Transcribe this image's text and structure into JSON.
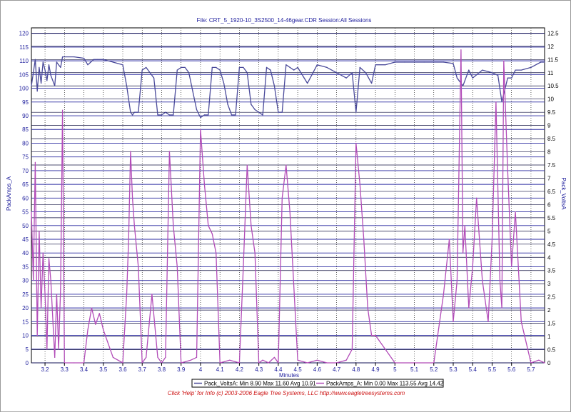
{
  "window": {
    "title": "File: CRT_5_1920-10_3S2500_14-46gear.CDR   Session:All Sessions"
  },
  "footer": {
    "text": "Click 'Help' for Info  (c) 2003-2006 Eagle Tree Systems, LLC   http://www.eagletreesystems.com"
  },
  "legend": {
    "volts_label": "Pack_VoltsA:  Min 8.90 Max 11.60 Avg 10.91",
    "amps_label": "PackAmps_A:  Min 0.00 Max 113.55 Avg 14.42"
  },
  "colors": {
    "volts": "#4a4a9a",
    "amps": "#b24cb8",
    "grid": "#2a2aa0",
    "grid_minor": "#000000",
    "label": "#1c1c9c"
  },
  "chart_data": {
    "type": "line",
    "title": "File: CRT_5_1920-10_3S2500_14-46gear.CDR   Session:All Sessions",
    "xlabel": "Minutes",
    "ylabel_left": "PackAmps_A",
    "ylabel_right": "Pack_VoltsA",
    "xlim": [
      3.13,
      5.77
    ],
    "ylim_left": [
      0,
      122
    ],
    "ylim_right": [
      0,
      12.7
    ],
    "x_ticks": [
      "3.2",
      "3.3",
      "3.4",
      "3.5",
      "3.6",
      "3.7",
      "3.8",
      "3.9",
      "4",
      "4.1",
      "4.2",
      "4.3",
      "4.4",
      "4.5",
      "4.6",
      "4.7",
      "4.8",
      "4.9",
      "5",
      "5.1",
      "5.2",
      "5.3",
      "5.4",
      "5.5",
      "5.6",
      "5.7"
    ],
    "y_left_ticks": [
      "0",
      "5",
      "10",
      "15",
      "20",
      "25",
      "30",
      "35",
      "40",
      "45",
      "50",
      "55",
      "60",
      "65",
      "70",
      "75",
      "80",
      "85",
      "90",
      "95",
      "100",
      "105",
      "110",
      "115",
      "120"
    ],
    "y_right_ticks": [
      "0",
      "0.5",
      "1",
      "1.5",
      "2",
      "2.5",
      "3",
      "3.5",
      "4",
      "4.5",
      "5",
      "5.5",
      "6",
      "6.5",
      "7",
      "7.5",
      "8",
      "8.5",
      "9",
      "9.5",
      "10",
      "10.5",
      "11",
      "11.5",
      "12",
      "12.5"
    ],
    "grid": true,
    "legend_position": "bottom",
    "series": [
      {
        "name": "Pack_VoltsA",
        "axis": "right",
        "x": [
          3.13,
          3.15,
          3.16,
          3.17,
          3.18,
          3.19,
          3.2,
          3.21,
          3.22,
          3.23,
          3.25,
          3.26,
          3.27,
          3.28,
          3.29,
          3.3,
          3.35,
          3.4,
          3.42,
          3.45,
          3.47,
          3.5,
          3.55,
          3.6,
          3.62,
          3.64,
          3.65,
          3.66,
          3.68,
          3.7,
          3.72,
          3.74,
          3.76,
          3.78,
          3.8,
          3.82,
          3.84,
          3.86,
          3.88,
          3.9,
          3.92,
          3.94,
          3.96,
          3.98,
          4.0,
          4.02,
          4.04,
          4.06,
          4.08,
          4.1,
          4.12,
          4.14,
          4.16,
          4.18,
          4.2,
          4.22,
          4.24,
          4.26,
          4.28,
          4.3,
          4.32,
          4.34,
          4.36,
          4.38,
          4.4,
          4.42,
          4.44,
          4.46,
          4.48,
          4.5,
          4.55,
          4.6,
          4.65,
          4.7,
          4.75,
          4.78,
          4.8,
          4.82,
          4.85,
          4.88,
          4.9,
          4.95,
          5.0,
          5.05,
          5.1,
          5.15,
          5.2,
          5.25,
          5.3,
          5.32,
          5.35,
          5.38,
          5.4,
          5.45,
          5.5,
          5.53,
          5.55,
          5.58,
          5.6,
          5.62,
          5.65,
          5.7,
          5.75,
          5.77
        ],
        "y": [
          10.5,
          11.5,
          10.3,
          11.2,
          10.6,
          11.4,
          11.1,
          10.7,
          11.3,
          10.9,
          10.5,
          11.4,
          11.3,
          11.2,
          11.6,
          11.6,
          11.6,
          11.55,
          11.3,
          11.5,
          11.5,
          11.5,
          11.4,
          11.3,
          10.5,
          9.5,
          9.4,
          9.5,
          9.5,
          11.1,
          11.2,
          11.0,
          10.8,
          9.4,
          9.4,
          9.5,
          9.4,
          9.4,
          11.1,
          11.2,
          11.2,
          11.0,
          10.3,
          9.6,
          9.3,
          9.4,
          9.4,
          11.2,
          11.2,
          11.1,
          10.6,
          9.8,
          9.4,
          9.4,
          11.2,
          11.2,
          11.0,
          9.8,
          9.6,
          9.5,
          9.4,
          11.2,
          11.1,
          10.5,
          9.5,
          9.5,
          11.3,
          11.2,
          11.1,
          11.2,
          10.6,
          11.3,
          11.2,
          11.0,
          10.8,
          11.0,
          9.5,
          11.2,
          11.0,
          10.6,
          11.3,
          11.3,
          11.4,
          11.4,
          11.4,
          11.4,
          11.4,
          11.4,
          11.35,
          10.8,
          10.5,
          11.1,
          10.8,
          11.1,
          11.0,
          10.9,
          9.9,
          10.8,
          10.8,
          11.1,
          11.1,
          11.2,
          11.4,
          11.4
        ]
      },
      {
        "name": "PackAmps_A",
        "axis": "left",
        "x": [
          3.13,
          3.14,
          3.15,
          3.16,
          3.17,
          3.18,
          3.19,
          3.2,
          3.21,
          3.22,
          3.23,
          3.25,
          3.26,
          3.27,
          3.28,
          3.29,
          3.3,
          3.35,
          3.4,
          3.42,
          3.44,
          3.46,
          3.48,
          3.5,
          3.55,
          3.6,
          3.62,
          3.63,
          3.64,
          3.65,
          3.66,
          3.68,
          3.7,
          3.72,
          3.75,
          3.78,
          3.8,
          3.82,
          3.84,
          3.86,
          3.88,
          3.9,
          3.95,
          3.98,
          4.0,
          4.02,
          4.04,
          4.06,
          4.08,
          4.1,
          4.15,
          4.2,
          4.22,
          4.24,
          4.26,
          4.28,
          4.3,
          4.32,
          4.35,
          4.38,
          4.4,
          4.42,
          4.44,
          4.46,
          4.5,
          4.55,
          4.6,
          4.65,
          4.7,
          4.75,
          4.78,
          4.8,
          4.82,
          4.84,
          4.86,
          4.88,
          4.9,
          4.95,
          5.0,
          5.1,
          5.2,
          5.25,
          5.28,
          5.3,
          5.32,
          5.34,
          5.35,
          5.36,
          5.38,
          5.4,
          5.42,
          5.45,
          5.48,
          5.5,
          5.52,
          5.54,
          5.55,
          5.56,
          5.58,
          5.6,
          5.62,
          5.65,
          5.7,
          5.74,
          5.77
        ],
        "y": [
          55,
          30,
          73,
          10,
          48,
          20,
          40,
          25,
          5,
          38,
          30,
          2,
          25,
          5,
          27,
          92,
          0,
          0,
          0,
          12,
          20,
          14,
          18,
          12,
          2,
          0,
          25,
          45,
          77,
          60,
          50,
          35,
          0,
          2,
          25,
          2,
          0,
          2,
          77,
          50,
          35,
          0,
          1,
          2,
          85,
          65,
          50,
          47,
          40,
          0,
          1,
          0,
          35,
          72,
          50,
          40,
          0,
          1,
          0,
          2,
          0,
          60,
          72,
          55,
          1,
          0,
          1,
          0,
          0,
          1,
          5,
          80,
          65,
          45,
          20,
          10,
          10,
          5,
          0,
          0,
          0,
          25,
          45,
          15,
          30,
          114,
          40,
          50,
          20,
          35,
          60,
          30,
          15,
          45,
          95,
          30,
          20,
          110,
          70,
          35,
          55,
          15,
          0,
          1,
          0
        ]
      }
    ]
  }
}
